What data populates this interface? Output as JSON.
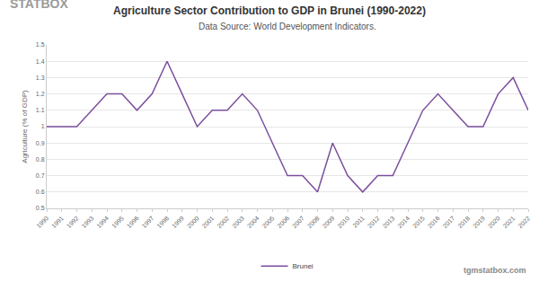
{
  "chart_data": {
    "type": "line",
    "title": "Agriculture Sector Contribution to GDP in Brunei (1990-2022)",
    "subtitle": "Data Source: World Development Indicators.",
    "logo": "STATBOX",
    "watermark": "tgmstatbox.com",
    "y_label": "Agriculture (% of GDP)",
    "categories": [
      "1990",
      "1991",
      "1992",
      "1993",
      "1994",
      "1995",
      "1996",
      "1997",
      "1998",
      "1999",
      "2000",
      "2001",
      "2002",
      "2003",
      "2004",
      "2005",
      "2006",
      "2007",
      "2008",
      "2009",
      "2010",
      "2011",
      "2012",
      "2013",
      "2014",
      "2015",
      "2016",
      "2017",
      "2018",
      "2019",
      "2020",
      "2021",
      "2022"
    ],
    "series": [
      {
        "name": "Brunei",
        "color": "#7b4f9d",
        "values": [
          1.0,
          1.0,
          1.0,
          1.1,
          1.2,
          1.2,
          1.1,
          1.2,
          1.4,
          1.2,
          1.0,
          1.1,
          1.1,
          1.2,
          1.1,
          0.9,
          0.7,
          0.7,
          0.6,
          0.9,
          0.7,
          0.6,
          0.7,
          0.7,
          0.9,
          1.1,
          1.2,
          1.1,
          1.0,
          1.0,
          1.2,
          1.3,
          1.1
        ]
      }
    ],
    "ylim": [
      0.5,
      1.5
    ],
    "yticks": [
      0.5,
      0.6,
      0.7,
      0.8,
      0.9,
      1,
      1.1,
      1.2,
      1.3,
      1.4,
      1.5
    ],
    "grid": true,
    "legend": "bottom"
  }
}
